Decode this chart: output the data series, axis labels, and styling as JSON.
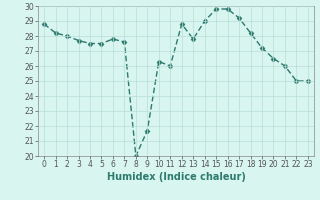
{
  "x": [
    0,
    1,
    2,
    3,
    4,
    5,
    6,
    7,
    8,
    9,
    10,
    11,
    12,
    13,
    14,
    15,
    16,
    17,
    18,
    19,
    20,
    21,
    22,
    23
  ],
  "y": [
    28.8,
    28.2,
    28.0,
    27.7,
    27.5,
    27.5,
    27.8,
    27.6,
    20.0,
    21.7,
    26.3,
    26.0,
    28.8,
    27.8,
    29.0,
    29.8,
    29.8,
    29.2,
    28.2,
    27.2,
    26.5,
    26.0,
    25.0,
    25.0
  ],
  "line_color": "#2d7a6e",
  "marker": "D",
  "markersize": 2.5,
  "linewidth": 1.0,
  "background_color": "#d8f5f0",
  "grid_color": "#b8ddd8",
  "xlabel": "Humidex (Indice chaleur)",
  "xlim": [
    -0.5,
    23.5
  ],
  "ylim": [
    20,
    30
  ],
  "yticks": [
    20,
    21,
    22,
    23,
    24,
    25,
    26,
    27,
    28,
    29,
    30
  ],
  "xticks": [
    0,
    1,
    2,
    3,
    4,
    5,
    6,
    7,
    8,
    9,
    10,
    11,
    12,
    13,
    14,
    15,
    16,
    17,
    18,
    19,
    20,
    21,
    22,
    23
  ],
  "xtick_labels": [
    "0",
    "1",
    "2",
    "3",
    "4",
    "5",
    "6",
    "7",
    "8",
    "9",
    "10",
    "11",
    "12",
    "13",
    "14",
    "15",
    "16",
    "17",
    "18",
    "19",
    "20",
    "21",
    "22",
    "23"
  ],
  "tick_fontsize": 5.5,
  "xlabel_fontsize": 7.0
}
